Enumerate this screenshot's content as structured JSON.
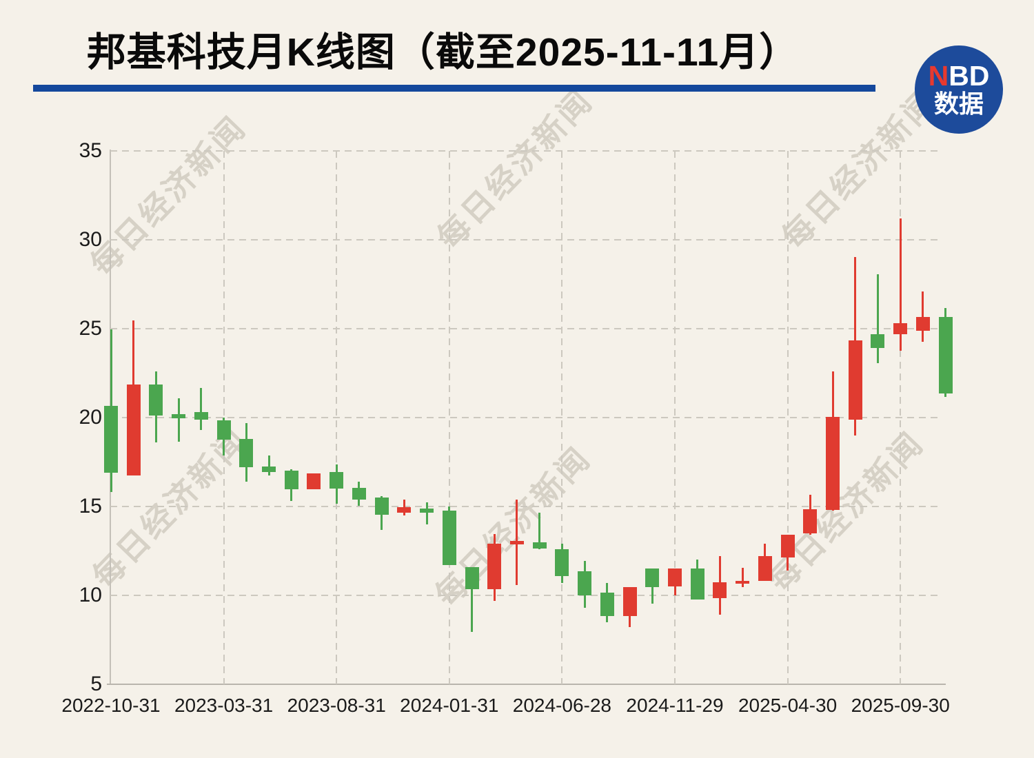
{
  "header": {
    "title": "邦基科技月K线图（截至2025-11-11月）"
  },
  "logo": {
    "line1_red": "N",
    "line1_rest": "BD",
    "line2": "数据",
    "circle_color": "#1D4B9B",
    "accent_red": "#E8392F"
  },
  "watermark": {
    "text": "每日经济新闻"
  },
  "chart_data": {
    "type": "candlestick",
    "title": "邦基科技月K线图（截至2025-11-11月）",
    "period": "monthly",
    "up_color": "#E03B30",
    "down_color": "#4BA64F",
    "color_convention": "red = close above open (up), green = close below open (down)",
    "grid": "dashed",
    "ylim": [
      5,
      35
    ],
    "y_ticks": [
      35,
      30,
      25,
      20,
      15,
      10,
      5
    ],
    "x_tick_labels": [
      "2022-10-31",
      "2023-03-31",
      "2023-08-31",
      "2024-01-31",
      "2024-06-28",
      "2024-11-29",
      "2025-04-30",
      "2025-09-30"
    ],
    "x_tick_step_months": 5,
    "candles": [
      {
        "date": "2022-10",
        "o": 20.65,
        "h": 24.95,
        "l": 15.8,
        "c": 16.9,
        "color": "green"
      },
      {
        "date": "2022-11",
        "o": 16.75,
        "h": 25.45,
        "l": 16.75,
        "c": 21.85,
        "color": "red"
      },
      {
        "date": "2022-12",
        "o": 21.85,
        "h": 22.6,
        "l": 18.6,
        "c": 20.1,
        "color": "green"
      },
      {
        "date": "2023-01",
        "o": 20.2,
        "h": 21.1,
        "l": 18.65,
        "c": 19.95,
        "color": "green"
      },
      {
        "date": "2023-02",
        "o": 20.3,
        "h": 21.65,
        "l": 19.3,
        "c": 19.9,
        "color": "green"
      },
      {
        "date": "2023-03",
        "o": 19.85,
        "h": 20.0,
        "l": 17.85,
        "c": 18.75,
        "color": "green"
      },
      {
        "date": "2023-04",
        "o": 18.8,
        "h": 19.7,
        "l": 16.4,
        "c": 17.2,
        "color": "green"
      },
      {
        "date": "2023-05",
        "o": 17.25,
        "h": 17.85,
        "l": 16.75,
        "c": 16.95,
        "color": "green"
      },
      {
        "date": "2023-06",
        "o": 17.0,
        "h": 17.1,
        "l": 15.3,
        "c": 15.95,
        "color": "green"
      },
      {
        "date": "2023-07",
        "o": 15.95,
        "h": 16.85,
        "l": 15.95,
        "c": 16.85,
        "color": "red"
      },
      {
        "date": "2023-08",
        "o": 16.95,
        "h": 17.35,
        "l": 15.15,
        "c": 16.0,
        "color": "green"
      },
      {
        "date": "2023-09",
        "o": 16.05,
        "h": 16.4,
        "l": 15.05,
        "c": 15.4,
        "color": "green"
      },
      {
        "date": "2023-10",
        "o": 15.5,
        "h": 15.6,
        "l": 13.7,
        "c": 14.55,
        "color": "green"
      },
      {
        "date": "2023-11",
        "o": 14.65,
        "h": 15.4,
        "l": 14.5,
        "c": 14.95,
        "color": "red"
      },
      {
        "date": "2023-12",
        "o": 14.9,
        "h": 15.25,
        "l": 14.0,
        "c": 14.65,
        "color": "green"
      },
      {
        "date": "2024-01",
        "o": 14.75,
        "h": 15.0,
        "l": 11.7,
        "c": 11.7,
        "color": "green"
      },
      {
        "date": "2024-02",
        "o": 11.6,
        "h": 11.6,
        "l": 7.95,
        "c": 10.35,
        "color": "green"
      },
      {
        "date": "2024-03",
        "o": 10.35,
        "h": 13.45,
        "l": 9.7,
        "c": 12.9,
        "color": "red"
      },
      {
        "date": "2024-04",
        "o": 12.85,
        "h": 15.4,
        "l": 10.6,
        "c": 13.05,
        "color": "red"
      },
      {
        "date": "2024-05",
        "o": 13.0,
        "h": 14.65,
        "l": 12.6,
        "c": 12.65,
        "color": "green"
      },
      {
        "date": "2024-06",
        "o": 12.6,
        "h": 12.9,
        "l": 10.7,
        "c": 11.1,
        "color": "green"
      },
      {
        "date": "2024-07",
        "o": 11.35,
        "h": 11.95,
        "l": 9.3,
        "c": 10.0,
        "color": "green"
      },
      {
        "date": "2024-08",
        "o": 10.15,
        "h": 10.7,
        "l": 8.5,
        "c": 8.85,
        "color": "green"
      },
      {
        "date": "2024-09",
        "o": 8.85,
        "h": 10.45,
        "l": 8.2,
        "c": 10.45,
        "color": "red"
      },
      {
        "date": "2024-10",
        "o": 11.5,
        "h": 11.5,
        "l": 9.55,
        "c": 10.45,
        "color": "green"
      },
      {
        "date": "2024-11",
        "o": 10.5,
        "h": 11.5,
        "l": 10.0,
        "c": 11.5,
        "color": "red"
      },
      {
        "date": "2024-12",
        "o": 11.5,
        "h": 12.0,
        "l": 9.75,
        "c": 9.75,
        "color": "green"
      },
      {
        "date": "2025-01",
        "o": 9.85,
        "h": 12.2,
        "l": 8.9,
        "c": 10.75,
        "color": "red"
      },
      {
        "date": "2025-02",
        "o": 10.65,
        "h": 11.55,
        "l": 10.45,
        "c": 10.8,
        "color": "red"
      },
      {
        "date": "2025-03",
        "o": 10.8,
        "h": 12.9,
        "l": 10.8,
        "c": 12.2,
        "color": "red"
      },
      {
        "date": "2025-04",
        "o": 12.15,
        "h": 13.4,
        "l": 11.4,
        "c": 13.4,
        "color": "red"
      },
      {
        "date": "2025-05",
        "o": 13.5,
        "h": 15.65,
        "l": 13.4,
        "c": 14.85,
        "color": "red"
      },
      {
        "date": "2025-06",
        "o": 14.8,
        "h": 22.6,
        "l": 14.75,
        "c": 20.05,
        "color": "red"
      },
      {
        "date": "2025-07",
        "o": 19.9,
        "h": 29.05,
        "l": 19.0,
        "c": 24.35,
        "color": "red"
      },
      {
        "date": "2025-08",
        "o": 24.7,
        "h": 28.05,
        "l": 23.05,
        "c": 23.9,
        "color": "green"
      },
      {
        "date": "2025-09",
        "o": 24.7,
        "h": 31.2,
        "l": 23.75,
        "c": 25.3,
        "color": "red"
      },
      {
        "date": "2025-10",
        "o": 24.9,
        "h": 27.1,
        "l": 24.25,
        "c": 25.65,
        "color": "red"
      },
      {
        "date": "2025-11",
        "o": 25.65,
        "h": 26.15,
        "l": 21.15,
        "c": 21.35,
        "color": "green"
      }
    ]
  }
}
